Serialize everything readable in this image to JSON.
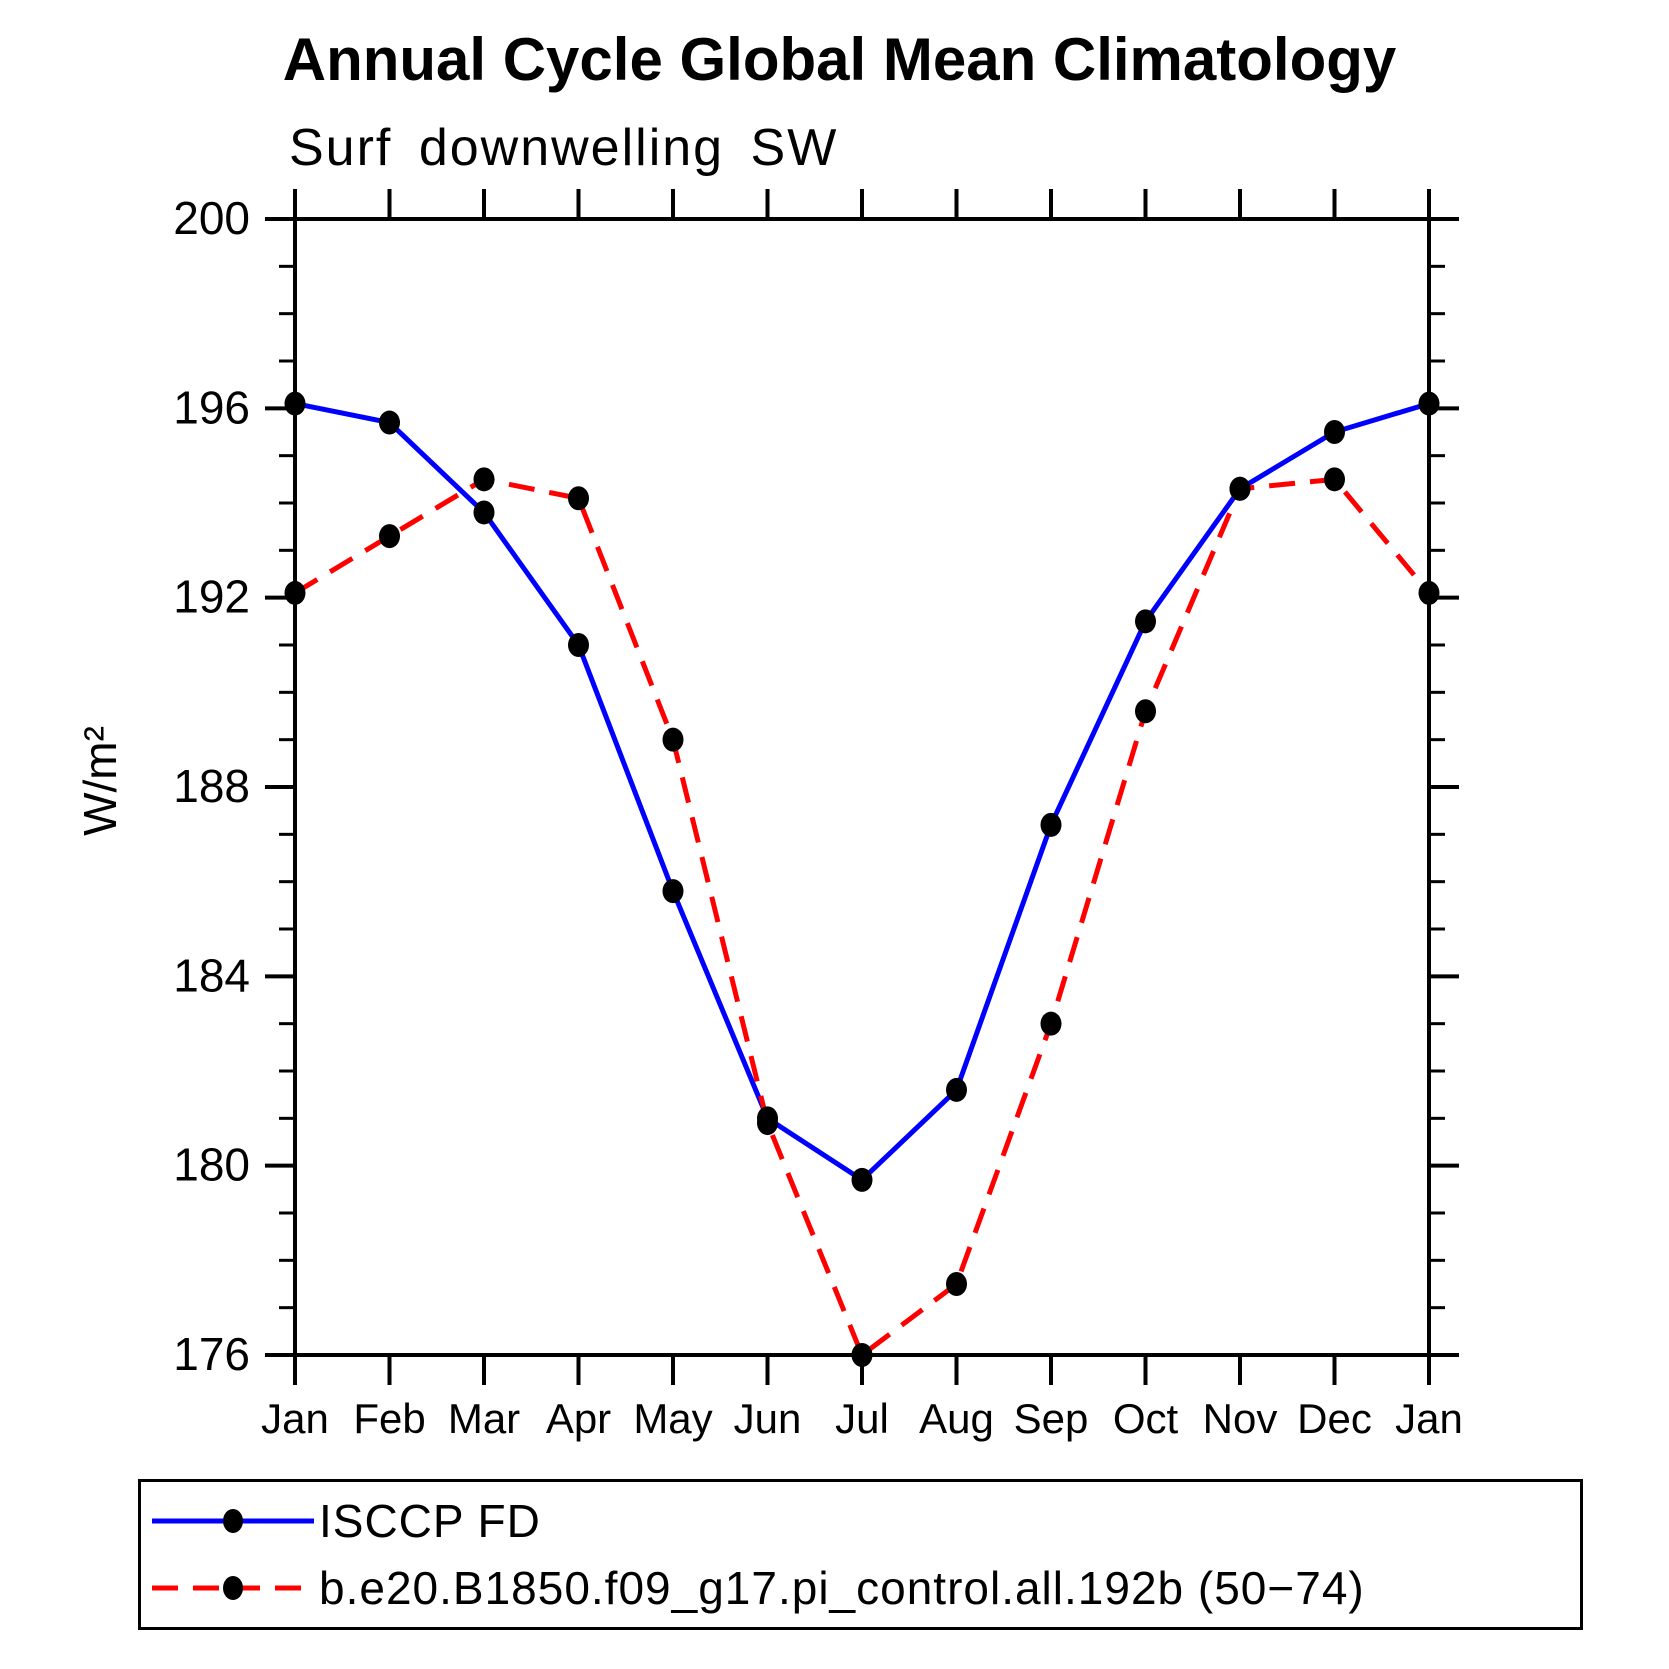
{
  "page": {
    "background": "#ffffff"
  },
  "chart_data": {
    "type": "line",
    "title": "Annual Cycle Global Mean Climatology",
    "subtitle": "Surf downwelling SW",
    "ylabel": "W/m²",
    "xlabel": "",
    "categories": [
      "Jan",
      "Feb",
      "Mar",
      "Apr",
      "May",
      "Jun",
      "Jul",
      "Aug",
      "Sep",
      "Oct",
      "Nov",
      "Dec",
      "Jan"
    ],
    "ylim": [
      176,
      200
    ],
    "yticks": [
      176,
      180,
      184,
      188,
      192,
      196,
      200
    ],
    "ytick_step_minor": 1,
    "grid": false,
    "legend_position": "bottom-left-box",
    "axis_color": "#000000",
    "marker": {
      "shape": "filled-circle",
      "color": "#000000"
    },
    "series": [
      {
        "name": "ISCCP FD",
        "color": "#0000ff",
        "line_style": "solid",
        "values": [
          196.1,
          195.7,
          193.8,
          191.0,
          185.8,
          181.0,
          179.7,
          181.6,
          187.2,
          191.5,
          194.3,
          195.5,
          196.1
        ]
      },
      {
        "name": "b.e20.B1850.f09_g17.pi_control.all.192b (50−74)",
        "color": "#ff0000",
        "line_style": "dashed",
        "values": [
          192.1,
          193.3,
          194.5,
          194.1,
          189.0,
          180.9,
          176.0,
          177.5,
          183.0,
          189.6,
          194.3,
          194.5,
          192.1
        ]
      }
    ]
  }
}
